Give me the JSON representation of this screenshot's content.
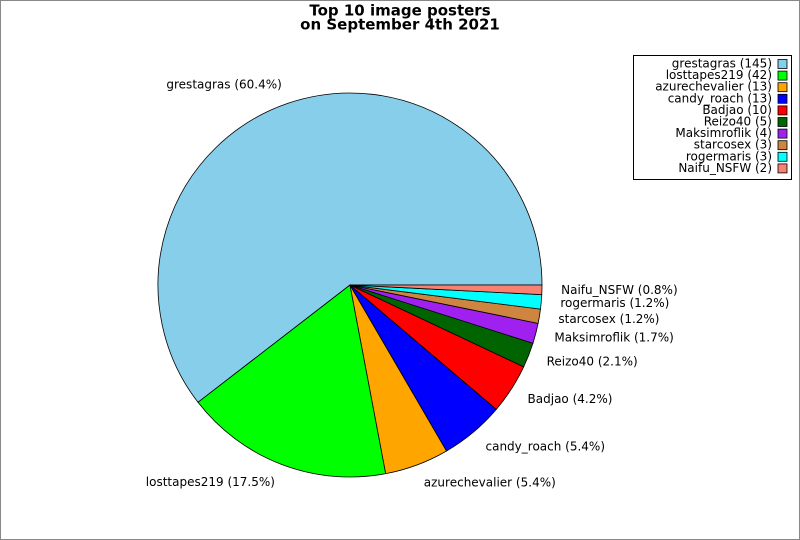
{
  "chart_data": {
    "type": "pie",
    "title": [
      "Top 10 image posters",
      "on September 4th 2021"
    ],
    "categories": [
      "grestagras (60.4%)",
      "losttapes219 (17.5%)",
      "azurechevalier (5.4%)",
      "candy_roach (5.4%)",
      "Badjao (4.2%)",
      "Reizo40 (2.1%)",
      "Maksimroflik (1.7%)",
      "starcosex (1.2%)",
      "rogermaris (1.2%)",
      "Naifu_NSFW (0.8%)"
    ],
    "values": [
      60.4,
      17.5,
      5.4,
      5.4,
      4.2,
      2.1,
      1.7,
      1.2,
      1.2,
      0.8
    ],
    "legend": [
      "grestagras (145)",
      "losttapes219 (42)",
      "azurechevalier (13)",
      "candy_roach (13)",
      "Badjao (10)",
      "Reizo40 (5)",
      "Maksimroflik (4)",
      "starcosex (3)",
      "rogermaris (3)",
      "Naifu_NSFW (2)"
    ],
    "colors": [
      "#87ceeb",
      "#00ff00",
      "#ffa500",
      "#0000ff",
      "#ff0000",
      "#006400",
      "#a020f0",
      "#cd853f",
      "#00ffff",
      "#fa8072"
    ],
    "legend_position": "upper right"
  }
}
